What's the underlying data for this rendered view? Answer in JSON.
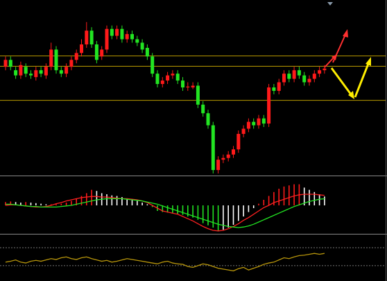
{
  "chart_data": [
    {
      "type": "candlestick",
      "ylim": [
        0,
        100
      ],
      "up_color": "#ff1a1a",
      "down_color": "#22e522",
      "open": [
        62,
        66,
        60,
        57,
        62,
        58,
        56,
        60,
        57,
        62,
        72,
        60,
        58,
        62,
        66,
        70,
        75,
        83,
        75,
        68,
        72,
        84,
        80,
        84,
        78,
        81,
        78,
        76,
        73,
        68,
        58,
        52,
        54,
        57,
        58,
        54,
        50,
        50,
        51,
        40,
        35,
        28,
        2,
        8,
        9,
        11,
        14,
        23,
        26,
        30,
        28,
        32,
        29,
        50,
        48,
        53,
        58,
        55,
        60,
        57,
        53,
        55,
        58,
        60
      ],
      "high": [
        68,
        68,
        62,
        65,
        64,
        60,
        62,
        62,
        64,
        76,
        74,
        62,
        64,
        68,
        72,
        78,
        88,
        85,
        77,
        74,
        86,
        86,
        86,
        86,
        83,
        83,
        80,
        78,
        75,
        70,
        60,
        56,
        59,
        60,
        60,
        56,
        53,
        53,
        53,
        42,
        37,
        30,
        10,
        11,
        13,
        16,
        25,
        28,
        32,
        32,
        34,
        34,
        52,
        52,
        55,
        60,
        60,
        62,
        62,
        59,
        57,
        60,
        62,
        63
      ],
      "low": [
        60,
        60,
        55,
        55,
        56,
        55,
        54,
        56,
        55,
        60,
        58,
        56,
        56,
        60,
        64,
        68,
        73,
        73,
        64,
        66,
        70,
        78,
        78,
        76,
        76,
        76,
        74,
        70,
        66,
        56,
        50,
        50,
        52,
        55,
        52,
        48,
        48,
        49,
        38,
        33,
        26,
        0,
        0,
        6,
        7,
        9,
        12,
        21,
        24,
        26,
        26,
        27,
        27,
        46,
        46,
        51,
        53,
        53,
        55,
        51,
        51,
        53,
        56,
        58
      ],
      "close": [
        66,
        62,
        57,
        63,
        58,
        57,
        60,
        58,
        62,
        72,
        60,
        58,
        62,
        66,
        70,
        75,
        83,
        75,
        66,
        72,
        84,
        80,
        84,
        78,
        81,
        78,
        76,
        72,
        68,
        58,
        52,
        54,
        57,
        58,
        54,
        50,
        50.5,
        51,
        40,
        35,
        28,
        2,
        8,
        9,
        11,
        14,
        23,
        26,
        30,
        28,
        32,
        29,
        50,
        48,
        53,
        58,
        55,
        60,
        57,
        53,
        55,
        58,
        60,
        61
      ],
      "levels": [
        68.3,
        62.3,
        42.5
      ],
      "level_color": "#b89a00"
    },
    {
      "type": "macd",
      "ylim": [
        -0.5,
        0.5
      ],
      "rise_color": "#ff1a1a",
      "fall_color": "#22e522",
      "neutral_color": "#ffffff",
      "values": [
        0.06,
        0.07,
        0.06,
        0.05,
        0.06,
        0.05,
        0.04,
        0.03,
        0.02,
        0.02,
        0.02,
        0.03,
        0.05,
        0.08,
        0.12,
        0.17,
        0.22,
        0.28,
        0.26,
        0.22,
        0.2,
        0.18,
        0.17,
        0.15,
        0.12,
        0.1,
        0.08,
        0.05,
        0.02,
        -0.03,
        -0.1,
        -0.12,
        -0.13,
        -0.14,
        -0.15,
        -0.17,
        -0.2,
        -0.22,
        -0.26,
        -0.32,
        -0.36,
        -0.4,
        -0.46,
        -0.44,
        -0.4,
        -0.35,
        -0.28,
        -0.2,
        -0.12,
        -0.05,
        0.03,
        0.1,
        0.17,
        0.24,
        0.3,
        0.34,
        0.36,
        0.38,
        0.38,
        0.32,
        0.28,
        0.24,
        0.2,
        0.16
      ],
      "series": [
        {
          "color": "#ff2020",
          "values": [
            0.0,
            0.01,
            0.01,
            0.0,
            -0.01,
            -0.02,
            -0.03,
            -0.03,
            -0.02,
            0.0,
            0.03,
            0.05,
            0.08,
            0.1,
            0.12,
            0.14,
            0.15,
            0.16,
            0.16,
            0.15,
            0.15,
            0.14,
            0.13,
            0.12,
            0.12,
            0.11,
            0.1,
            0.08,
            0.05,
            0.0,
            -0.05,
            -0.1,
            -0.12,
            -0.14,
            -0.16,
            -0.2,
            -0.24,
            -0.28,
            -0.33,
            -0.38,
            -0.42,
            -0.45,
            -0.46,
            -0.45,
            -0.42,
            -0.38,
            -0.33,
            -0.27,
            -0.22,
            -0.16,
            -0.1,
            -0.04,
            0.0,
            0.05,
            0.08,
            0.11,
            0.14,
            0.17,
            0.19,
            0.2,
            0.2,
            0.2,
            0.19,
            0.18
          ]
        },
        {
          "color": "#22e522",
          "values": [
            0.02,
            0.02,
            0.01,
            0.0,
            -0.01,
            -0.02,
            -0.02,
            -0.03,
            -0.03,
            -0.03,
            -0.03,
            -0.02,
            -0.01,
            0.0,
            0.02,
            0.04,
            0.06,
            0.08,
            0.1,
            0.11,
            0.12,
            0.12,
            0.12,
            0.12,
            0.11,
            0.1,
            0.09,
            0.08,
            0.06,
            0.04,
            0.02,
            -0.01,
            -0.04,
            -0.07,
            -0.1,
            -0.13,
            -0.16,
            -0.19,
            -0.22,
            -0.25,
            -0.28,
            -0.31,
            -0.34,
            -0.36,
            -0.38,
            -0.39,
            -0.4,
            -0.39,
            -0.37,
            -0.34,
            -0.3,
            -0.26,
            -0.22,
            -0.18,
            -0.14,
            -0.1,
            -0.06,
            -0.02,
            0.01,
            0.04,
            0.07,
            0.09,
            0.11,
            0.12
          ]
        }
      ]
    },
    {
      "type": "line",
      "ylim": [
        0,
        100
      ],
      "color": "#b8960b",
      "levels": [
        73,
        32
      ],
      "level_color": "#777777",
      "values": [
        40,
        42,
        45,
        40,
        38,
        42,
        44,
        42,
        45,
        48,
        46,
        50,
        52,
        48,
        46,
        50,
        52,
        48,
        45,
        42,
        44,
        40,
        42,
        45,
        48,
        46,
        44,
        42,
        40,
        38,
        36,
        40,
        42,
        38,
        36,
        35,
        30,
        28,
        32,
        36,
        34,
        30,
        26,
        24,
        22,
        20,
        25,
        28,
        22,
        26,
        30,
        35,
        38,
        40,
        45,
        50,
        48,
        52,
        55,
        56,
        58,
        60,
        58,
        60
      ]
    }
  ]
}
